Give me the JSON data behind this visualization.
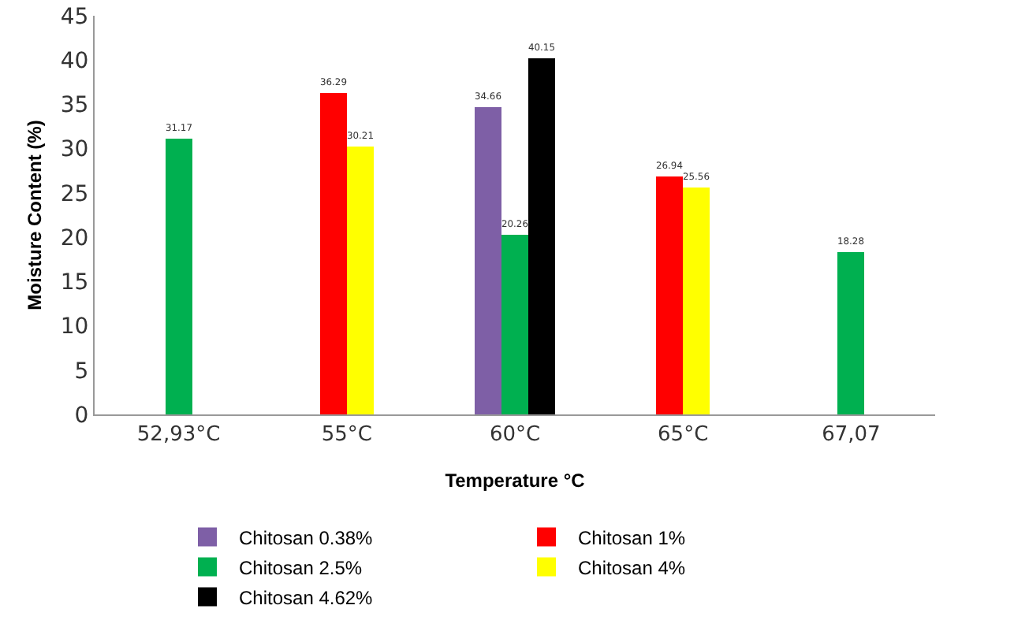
{
  "chart_data": {
    "type": "bar",
    "xlabel": "Temperature °C",
    "ylabel": "Moisture Content (%)",
    "categories": [
      "52,93°C",
      "55°C",
      "60°C",
      "65°C",
      "67,07"
    ],
    "series": [
      {
        "name": "Chitosan 0.38%",
        "color": "#7e5fa6",
        "values": [
          null,
          null,
          34.66,
          null,
          null
        ]
      },
      {
        "name": "Chitosan 1%",
        "color": "#ff0000",
        "values": [
          null,
          36.29,
          null,
          26.94,
          null
        ]
      },
      {
        "name": "Chitosan 2.5%",
        "color": "#00b050",
        "values": [
          31.17,
          null,
          20.26,
          null,
          18.28
        ]
      },
      {
        "name": "Chitosan 4%",
        "color": "#ffff00",
        "values": [
          null,
          30.21,
          null,
          25.56,
          null
        ]
      },
      {
        "name": "Chitosan 4.62%",
        "color": "#000000",
        "values": [
          null,
          null,
          40.15,
          null,
          null
        ]
      }
    ],
    "ylim": [
      0,
      45
    ],
    "yticks": [
      0,
      5,
      10,
      15,
      20,
      25,
      30,
      35,
      40,
      45
    ],
    "grid": false,
    "legend": "bottom",
    "data_labels": true
  }
}
